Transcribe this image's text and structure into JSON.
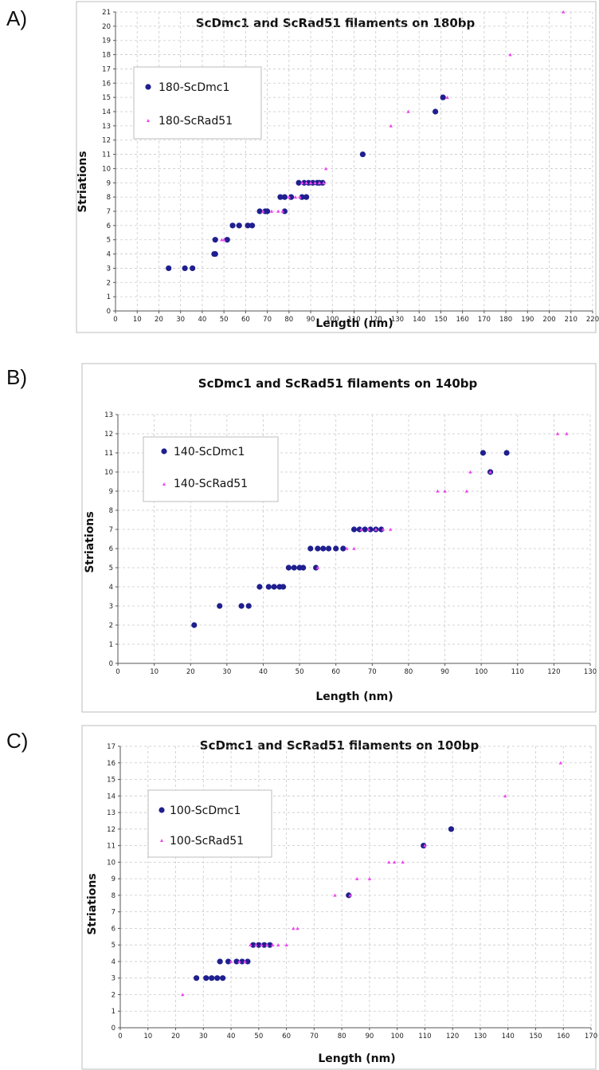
{
  "colors": {
    "dmc1": "#1f1f8f",
    "rad51": "#ee44ee"
  },
  "chart_data": [
    {
      "panel": "A)",
      "type": "scatter",
      "title": "ScDmc1 and ScRad51 filaments on 180bp",
      "xlabel": "Length (nm)",
      "ylabel": "Striations",
      "xlim": [
        0,
        220
      ],
      "ylim": [
        0,
        21
      ],
      "xticks": [
        0,
        10,
        20,
        30,
        40,
        50,
        60,
        70,
        80,
        90,
        100,
        110,
        120,
        130,
        140,
        150,
        160,
        170,
        180,
        190,
        200,
        210,
        220
      ],
      "yticks": [
        0,
        1,
        2,
        3,
        4,
        5,
        6,
        7,
        8,
        9,
        10,
        11,
        12,
        13,
        14,
        15,
        16,
        17,
        18,
        19,
        20,
        21
      ],
      "grid": true,
      "legend": "top-left",
      "series": [
        {
          "name": "180-ScDmc1",
          "marker": "circle",
          "points": [
            [
              24.5,
              3
            ],
            [
              32,
              3
            ],
            [
              35.5,
              3
            ],
            [
              45.5,
              4
            ],
            [
              46,
              4
            ],
            [
              46,
              5
            ],
            [
              51.5,
              5
            ],
            [
              54,
              6
            ],
            [
              57,
              6
            ],
            [
              61,
              6
            ],
            [
              63,
              6
            ],
            [
              66.5,
              7
            ],
            [
              69,
              7
            ],
            [
              70,
              7
            ],
            [
              78,
              7
            ],
            [
              76,
              8
            ],
            [
              78,
              8
            ],
            [
              81,
              8
            ],
            [
              86,
              8
            ],
            [
              88,
              8
            ],
            [
              84.5,
              9
            ],
            [
              87,
              9
            ],
            [
              89,
              9
            ],
            [
              91,
              9
            ],
            [
              93,
              9
            ],
            [
              94,
              9
            ],
            [
              95.5,
              9
            ],
            [
              114,
              11
            ],
            [
              147.5,
              14
            ],
            [
              151,
              15
            ]
          ]
        },
        {
          "name": "180-ScRad51",
          "marker": "triangle",
          "points": [
            [
              49,
              5
            ],
            [
              50,
              5
            ],
            [
              68,
              7
            ],
            [
              72,
              7
            ],
            [
              75,
              7
            ],
            [
              77,
              7
            ],
            [
              80,
              8
            ],
            [
              83,
              8
            ],
            [
              85,
              8
            ],
            [
              86,
              9
            ],
            [
              88,
              9
            ],
            [
              90,
              9
            ],
            [
              92,
              9
            ],
            [
              94,
              9
            ],
            [
              96,
              9
            ],
            [
              97,
              10
            ],
            [
              127,
              13
            ],
            [
              135,
              14
            ],
            [
              153,
              15
            ],
            [
              182,
              18
            ],
            [
              206.5,
              21
            ]
          ]
        }
      ]
    },
    {
      "panel": "B)",
      "type": "scatter",
      "title": "ScDmc1 and ScRad51 filaments on 140bp",
      "xlabel": "Length (nm)",
      "ylabel": "Striations",
      "xlim": [
        0,
        130
      ],
      "ylim": [
        0,
        13
      ],
      "xticks": [
        0,
        10,
        20,
        30,
        40,
        50,
        60,
        70,
        80,
        90,
        100,
        110,
        120,
        130
      ],
      "yticks": [
        0,
        1,
        2,
        3,
        4,
        5,
        6,
        7,
        8,
        9,
        10,
        11,
        12,
        13
      ],
      "grid": true,
      "legend": "top-left",
      "series": [
        {
          "name": "140-ScDmc1",
          "marker": "circle",
          "points": [
            [
              21,
              2
            ],
            [
              28,
              3
            ],
            [
              34,
              3
            ],
            [
              36,
              3
            ],
            [
              39,
              4
            ],
            [
              41.5,
              4
            ],
            [
              43,
              4
            ],
            [
              44.5,
              4
            ],
            [
              45.5,
              4
            ],
            [
              47,
              5
            ],
            [
              48.5,
              5
            ],
            [
              50,
              5
            ],
            [
              51,
              5
            ],
            [
              54.5,
              5
            ],
            [
              53,
              6
            ],
            [
              55,
              6
            ],
            [
              56.5,
              6
            ],
            [
              58,
              6
            ],
            [
              60,
              6
            ],
            [
              62,
              6
            ],
            [
              65,
              7
            ],
            [
              66.5,
              7
            ],
            [
              68,
              7
            ],
            [
              69.5,
              7
            ],
            [
              71,
              7
            ],
            [
              72.5,
              7
            ],
            [
              100.5,
              11
            ],
            [
              102.5,
              10
            ],
            [
              107,
              11
            ]
          ]
        },
        {
          "name": "140-ScRad51",
          "marker": "triangle",
          "points": [
            [
              55,
              5
            ],
            [
              63,
              6
            ],
            [
              65,
              6
            ],
            [
              67,
              7
            ],
            [
              69,
              7
            ],
            [
              71,
              7
            ],
            [
              73,
              7
            ],
            [
              75,
              7
            ],
            [
              88,
              9
            ],
            [
              90,
              9
            ],
            [
              96,
              9
            ],
            [
              97,
              10
            ],
            [
              102.5,
              10
            ],
            [
              121,
              12
            ],
            [
              123.5,
              12
            ]
          ]
        }
      ]
    },
    {
      "panel": "C)",
      "type": "scatter",
      "title": "ScDmc1 and ScRad51 filaments on 100bp",
      "xlabel": "Length (nm)",
      "ylabel": "Striations",
      "xlim": [
        0,
        170
      ],
      "ylim": [
        0,
        17
      ],
      "xticks": [
        0,
        10,
        20,
        30,
        40,
        50,
        60,
        70,
        80,
        90,
        100,
        110,
        120,
        130,
        140,
        150,
        160,
        170
      ],
      "yticks": [
        0,
        1,
        2,
        3,
        4,
        5,
        6,
        7,
        8,
        9,
        10,
        11,
        12,
        13,
        14,
        15,
        16,
        17
      ],
      "grid": true,
      "legend": "top-left",
      "series": [
        {
          "name": "100-ScDmc1",
          "marker": "circle",
          "points": [
            [
              27.5,
              3
            ],
            [
              31,
              3
            ],
            [
              33,
              3
            ],
            [
              35,
              3
            ],
            [
              37,
              3
            ],
            [
              36,
              4
            ],
            [
              39,
              4
            ],
            [
              42,
              4
            ],
            [
              44,
              4
            ],
            [
              46,
              4
            ],
            [
              48,
              5
            ],
            [
              50,
              5
            ],
            [
              52,
              5
            ],
            [
              54,
              5
            ],
            [
              82.5,
              8
            ],
            [
              109.5,
              11
            ],
            [
              119.5,
              12
            ]
          ]
        },
        {
          "name": "100-ScRad51",
          "marker": "triangle",
          "points": [
            [
              22.5,
              2
            ],
            [
              40,
              4
            ],
            [
              43,
              4
            ],
            [
              45,
              4
            ],
            [
              47,
              5
            ],
            [
              49,
              5
            ],
            [
              51,
              5
            ],
            [
              53,
              5
            ],
            [
              55,
              5
            ],
            [
              57,
              5
            ],
            [
              60,
              5
            ],
            [
              62.5,
              6
            ],
            [
              64,
              6
            ],
            [
              77.5,
              8
            ],
            [
              83,
              8
            ],
            [
              85.5,
              9
            ],
            [
              90,
              9
            ],
            [
              97,
              10
            ],
            [
              99,
              10
            ],
            [
              102,
              10
            ],
            [
              110,
              11
            ],
            [
              139,
              14
            ],
            [
              159,
              16
            ]
          ]
        }
      ]
    }
  ]
}
